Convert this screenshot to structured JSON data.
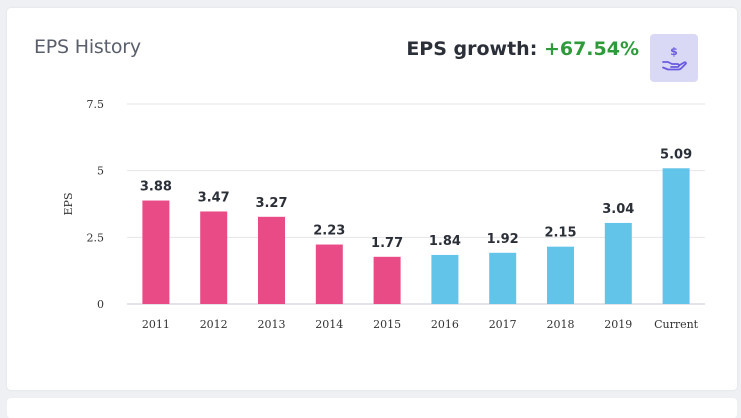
{
  "card": {
    "title": "EPS History",
    "growth_label": "EPS growth:",
    "growth_value": "+67.54%",
    "icon": "hand-dollar-icon"
  },
  "colors": {
    "historical_bar": "#e94b86",
    "recent_bar": "#62c4e8",
    "growth_positive": "#2e9b3a",
    "icon_bg": "#d9d9f6",
    "icon_fg": "#6a5ae0"
  },
  "chart_data": {
    "type": "bar",
    "categories": [
      "2011",
      "2012",
      "2013",
      "2014",
      "2015",
      "2016",
      "2017",
      "2018",
      "2019",
      "Current"
    ],
    "values": [
      3.88,
      3.47,
      3.27,
      2.23,
      1.77,
      1.84,
      1.92,
      2.15,
      3.04,
      5.09
    ],
    "value_labels": [
      "3.88",
      "3.47",
      "3.27",
      "2.23",
      "1.77",
      "1.84",
      "1.92",
      "2.15",
      "3.04",
      "5.09"
    ],
    "bar_colors": [
      "#e94b86",
      "#e94b86",
      "#e94b86",
      "#e94b86",
      "#e94b86",
      "#62c4e8",
      "#62c4e8",
      "#62c4e8",
      "#62c4e8",
      "#62c4e8"
    ],
    "ylabel": "EPS",
    "xlabel": "",
    "ylim": [
      0,
      7.5
    ],
    "yticks": [
      0,
      2.5,
      5,
      7.5
    ],
    "ytick_labels": [
      "0",
      "2.5",
      "5",
      "7.5"
    ],
    "grid": true,
    "legend": false
  }
}
